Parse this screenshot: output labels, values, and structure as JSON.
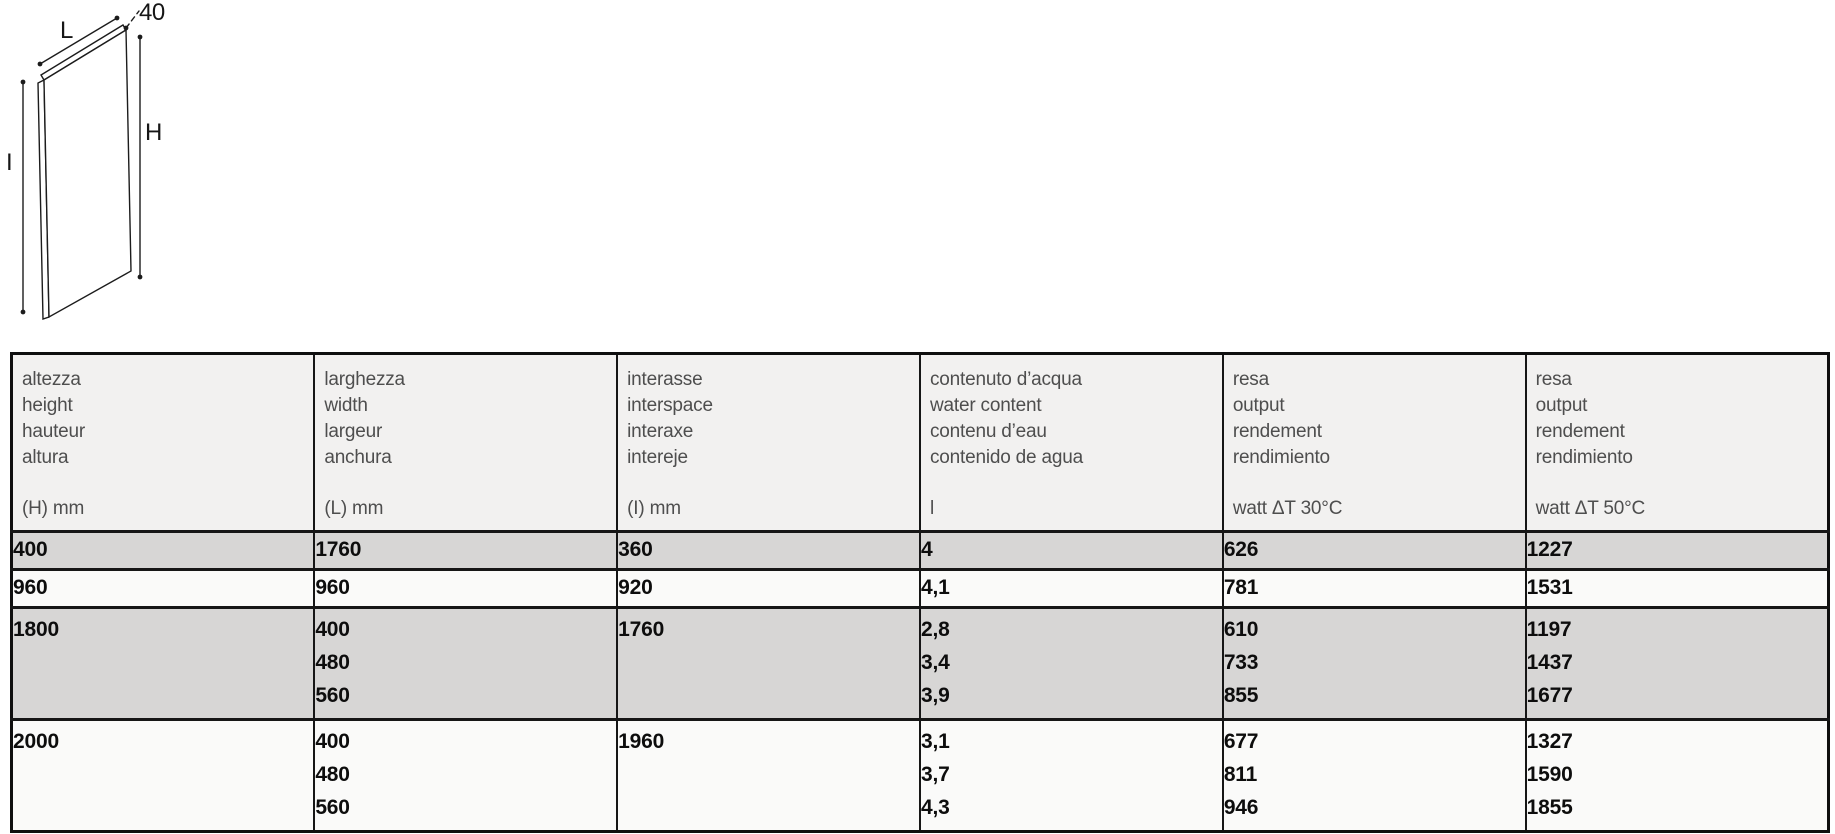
{
  "page": {
    "background": "#ffffff"
  },
  "diagram": {
    "description": "isometric-line-drawing-of-flat-radiator-panel",
    "labels": {
      "width": "L",
      "depth": "40",
      "height": "H",
      "interspace": "I"
    }
  },
  "colors": {
    "header_bg": "#f2f1f0",
    "row_shaded_bg": "#d7d6d5",
    "row_light_bg": "#fafaf9",
    "border": "#0f0f0f",
    "header_text": "#4e4e4e",
    "data_text": "#0d0d0d"
  },
  "table": {
    "columns": [
      {
        "labels": [
          "altezza",
          "height",
          "hauteur",
          "altura"
        ],
        "unit": "(H) mm"
      },
      {
        "labels": [
          "larghezza",
          "width",
          "largeur",
          "anchura"
        ],
        "unit": "(L) mm"
      },
      {
        "labels": [
          "interasse",
          "interspace",
          "interaxe",
          "intereje"
        ],
        "unit": "(I) mm"
      },
      {
        "labels": [
          "contenuto d’acqua",
          "water content",
          "contenu d’eau",
          "contenido de agua"
        ],
        "unit": "l"
      },
      {
        "labels": [
          "resa",
          "output",
          "rendement",
          "rendimiento"
        ],
        "unit": "watt ΔT 30°C"
      },
      {
        "labels": [
          "resa",
          "output",
          "rendement",
          "rendimiento"
        ],
        "unit": "watt ΔT 50°C"
      }
    ],
    "rows": [
      {
        "shaded": true,
        "cells": [
          [
            "400"
          ],
          [
            "1760"
          ],
          [
            "360"
          ],
          [
            "4"
          ],
          [
            "626"
          ],
          [
            "1227"
          ]
        ]
      },
      {
        "shaded": false,
        "cells": [
          [
            "960"
          ],
          [
            "960"
          ],
          [
            "920"
          ],
          [
            "4,1"
          ],
          [
            "781"
          ],
          [
            "1531"
          ]
        ]
      },
      {
        "shaded": true,
        "cells": [
          [
            "1800"
          ],
          [
            "400",
            "480",
            "560"
          ],
          [
            "1760"
          ],
          [
            "2,8",
            "3,4",
            "3,9"
          ],
          [
            "610",
            "733",
            "855"
          ],
          [
            "1197",
            "1437",
            "1677"
          ]
        ]
      },
      {
        "shaded": false,
        "cells": [
          [
            "2000"
          ],
          [
            "400",
            "480",
            "560"
          ],
          [
            "1960"
          ],
          [
            "3,1",
            "3,7",
            "4,3"
          ],
          [
            "677",
            "811",
            "946"
          ],
          [
            "1327",
            "1590",
            "1855"
          ]
        ]
      }
    ]
  }
}
